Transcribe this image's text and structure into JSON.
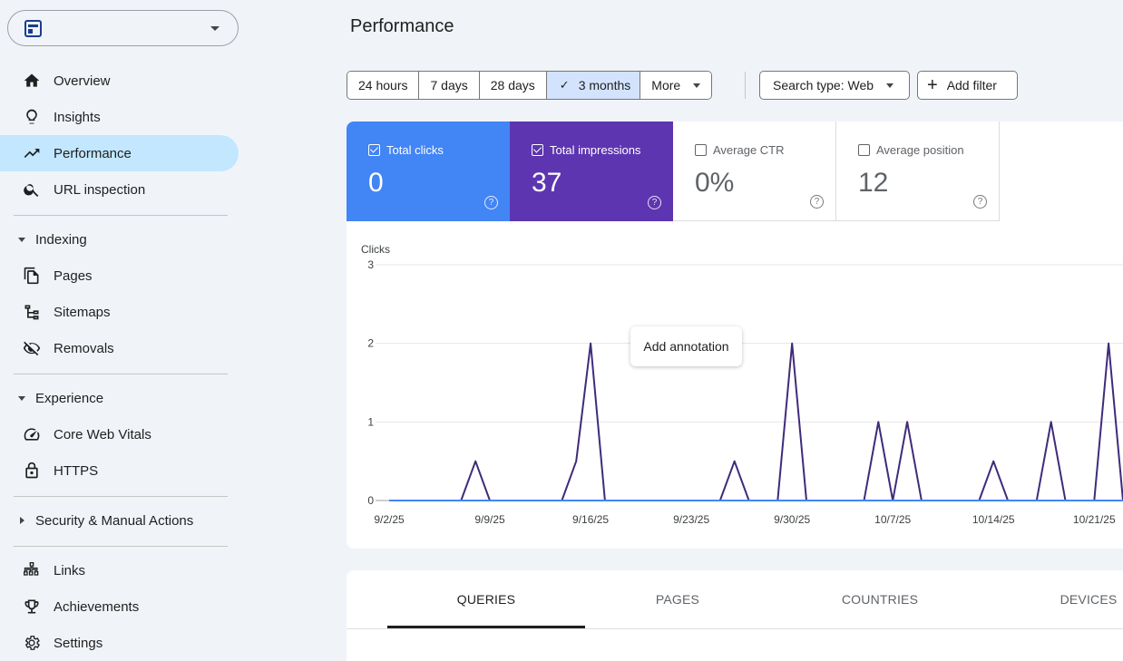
{
  "sidebar": {
    "property_name": "",
    "nav_top": [
      {
        "label": "Overview",
        "icon": "home-icon"
      },
      {
        "label": "Insights",
        "icon": "lightbulb-icon"
      },
      {
        "label": "Performance",
        "icon": "trending-up-icon",
        "active": true
      },
      {
        "label": "URL inspection",
        "icon": "search-icon"
      }
    ],
    "indexing": {
      "label": "Indexing",
      "items": [
        {
          "label": "Pages",
          "icon": "pages-icon"
        },
        {
          "label": "Sitemaps",
          "icon": "sitemap-icon"
        },
        {
          "label": "Removals",
          "icon": "visibility-off-icon"
        }
      ]
    },
    "experience": {
      "label": "Experience",
      "items": [
        {
          "label": "Core Web Vitals",
          "icon": "speed-icon"
        },
        {
          "label": "HTTPS",
          "icon": "lock-icon"
        }
      ]
    },
    "security": {
      "label": "Security & Manual Actions"
    },
    "nav_bottom": [
      {
        "label": "Links",
        "icon": "links-icon"
      },
      {
        "label": "Achievements",
        "icon": "trophy-icon"
      },
      {
        "label": "Settings",
        "icon": "gear-icon"
      }
    ]
  },
  "header": {
    "title": "Performance"
  },
  "filters": {
    "ranges": [
      "24 hours",
      "7 days",
      "28 days",
      "3 months",
      "More"
    ],
    "selected_range": "3 months",
    "search_type": "Search type: Web",
    "add_filter": "Add filter"
  },
  "metrics": [
    {
      "label": "Total clicks",
      "value": "0",
      "checked": true,
      "color": "#4285f4"
    },
    {
      "label": "Total impressions",
      "value": "37",
      "checked": true,
      "color": "#5e35b1"
    },
    {
      "label": "Average CTR",
      "value": "0%",
      "checked": false
    },
    {
      "label": "Average position",
      "value": "12",
      "checked": false
    }
  ],
  "tooltip": "Add annotation",
  "chart_data": {
    "type": "line",
    "ylabel": "Clicks",
    "ylim": [
      0,
      3
    ],
    "yticks": [
      "0",
      "1",
      "2",
      "3"
    ],
    "x": [
      "9/2/25",
      "9/3/25",
      "9/4/25",
      "9/5/25",
      "9/6/25",
      "9/7/25",
      "9/8/25",
      "9/9/25",
      "9/10/25",
      "9/11/25",
      "9/12/25",
      "9/13/25",
      "9/14/25",
      "9/15/25",
      "9/16/25",
      "9/17/25",
      "9/18/25",
      "9/19/25",
      "9/20/25",
      "9/21/25",
      "9/22/25",
      "9/23/25",
      "9/24/25",
      "9/25/25",
      "9/26/25",
      "9/27/25",
      "9/28/25",
      "9/29/25",
      "9/30/25",
      "10/1/25",
      "10/2/25",
      "10/3/25",
      "10/4/25",
      "10/5/25",
      "10/6/25",
      "10/7/25",
      "10/8/25",
      "10/9/25",
      "10/10/25",
      "10/11/25",
      "10/12/25",
      "10/13/25",
      "10/14/25",
      "10/15/25",
      "10/16/25",
      "10/17/25",
      "10/18/25",
      "10/19/25",
      "10/20/25",
      "10/21/25",
      "10/22/25",
      "10/23/25"
    ],
    "xtick_labels": [
      "9/2/25",
      "9/9/25",
      "9/16/25",
      "9/23/25",
      "9/30/25",
      "10/7/25",
      "10/14/25",
      "10/21/25"
    ],
    "series": [
      {
        "name": "Total impressions",
        "color": "#3f2b7a",
        "values": [
          0,
          0,
          0,
          0,
          0,
          0,
          0.5,
          0,
          0,
          0,
          0,
          0,
          0,
          0.5,
          2,
          0,
          0,
          0,
          0,
          0,
          0,
          0,
          0,
          0,
          0.5,
          0,
          0,
          0,
          2,
          0,
          0,
          0,
          0,
          0,
          1,
          0,
          1,
          0,
          0,
          0,
          0,
          0,
          0.5,
          0,
          0,
          0,
          1,
          0,
          0,
          0,
          2,
          0
        ]
      },
      {
        "name": "Total clicks",
        "color": "#4285f4",
        "values": [
          0,
          0,
          0,
          0,
          0,
          0,
          0,
          0,
          0,
          0,
          0,
          0,
          0,
          0,
          0,
          0,
          0,
          0,
          0,
          0,
          0,
          0,
          0,
          0,
          0,
          0,
          0,
          0,
          0,
          0,
          0,
          0,
          0,
          0,
          0,
          0,
          0,
          0,
          0,
          0,
          0,
          0,
          0,
          0,
          0,
          0,
          0,
          0,
          0,
          0,
          0,
          0
        ]
      }
    ]
  },
  "tabs": [
    {
      "label": "QUERIES",
      "active": true
    },
    {
      "label": "PAGES"
    },
    {
      "label": "COUNTRIES"
    },
    {
      "label": "DEVICES"
    }
  ]
}
